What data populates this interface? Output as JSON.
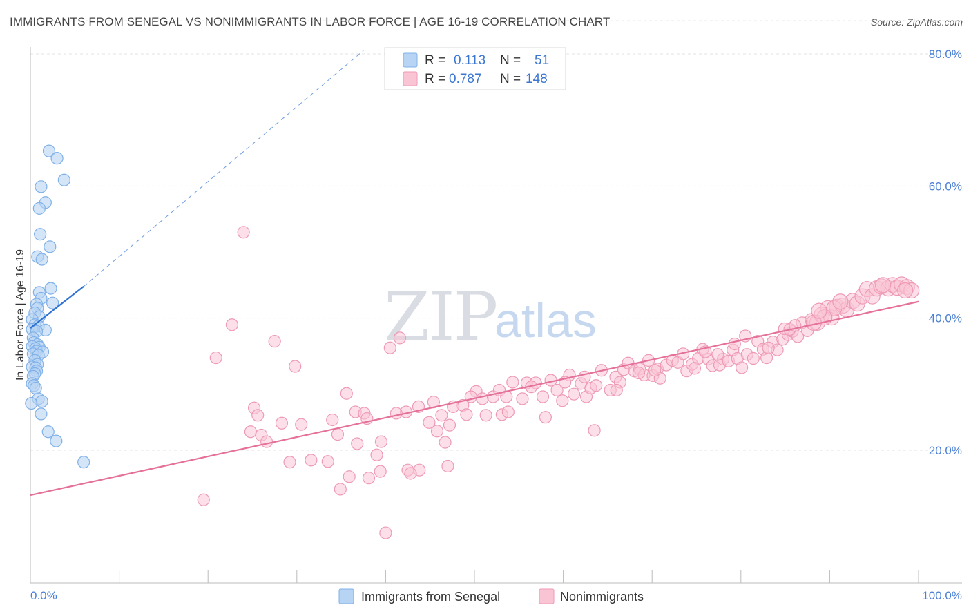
{
  "header": {
    "title": "IMMIGRANTS FROM SENEGAL VS NONIMMIGRANTS IN LABOR FORCE | AGE 16-19 CORRELATION CHART",
    "source": "Source: ZipAtlas.com"
  },
  "watermark": {
    "zip": "ZIP",
    "atlas": "atlas"
  },
  "colors": {
    "blue_fill": "#b8d4f4",
    "blue_stroke": "#7fb0e8",
    "blue_line": "#2f72d1",
    "pink_fill": "#f9c5d5",
    "pink_stroke": "#ee9ab5",
    "pink_line": "#e5719a",
    "tick_text": "#4a7fd6"
  },
  "chart_data": {
    "type": "scatter",
    "title": "IMMIGRANTS FROM SENEGAL VS NONIMMIGRANTS IN LABOR FORCE | AGE 16-19 CORRELATION CHART",
    "xlabel": "",
    "ylabel": "In Labor Force | Age 16-19",
    "xlim": [
      0,
      100
    ],
    "ylim": [
      0,
      85
    ],
    "x_tick_labels": [
      "0.0%",
      "100.0%"
    ],
    "y_ticks": [
      20,
      40,
      60,
      80
    ],
    "y_tick_labels": [
      "20.0%",
      "40.0%",
      "60.0%",
      "80.0%"
    ],
    "grid": true,
    "legend_position": "bottom-center",
    "stats": [
      {
        "r_label": "R =",
        "r_value": "0.113",
        "n_label": "N =",
        "n_value": "51"
      },
      {
        "r_label": "R =",
        "r_value": "0.787",
        "n_label": "N =",
        "n_value": "148"
      }
    ],
    "series": [
      {
        "name": "Immigrants from Senegal",
        "color": "#b8d4f4",
        "trend": {
          "x0": 0,
          "y0": 38.5,
          "x1": 6,
          "y1": 44.8
        },
        "trend_extension": {
          "x0": 6,
          "y0": 44.8,
          "x1": 37.5,
          "y1": 80.5
        },
        "points": [
          [
            2.1,
            65.3
          ],
          [
            3.0,
            64.2
          ],
          [
            1.2,
            59.9
          ],
          [
            3.8,
            60.9
          ],
          [
            1.7,
            57.5
          ],
          [
            1.0,
            56.6
          ],
          [
            1.1,
            52.7
          ],
          [
            2.2,
            50.8
          ],
          [
            0.8,
            49.3
          ],
          [
            1.3,
            48.9
          ],
          [
            2.3,
            44.5
          ],
          [
            1.0,
            43.9
          ],
          [
            1.2,
            43.0
          ],
          [
            2.5,
            42.3
          ],
          [
            0.7,
            42.1
          ],
          [
            0.8,
            41.5
          ],
          [
            0.5,
            40.8
          ],
          [
            1.0,
            40.2
          ],
          [
            0.2,
            39.8
          ],
          [
            0.5,
            39.0
          ],
          [
            0.9,
            38.8
          ],
          [
            0.2,
            38.3
          ],
          [
            1.7,
            38.2
          ],
          [
            0.7,
            38.0
          ],
          [
            0.3,
            37.0
          ],
          [
            0.4,
            36.3
          ],
          [
            0.8,
            36.0
          ],
          [
            0.2,
            35.7
          ],
          [
            1.0,
            35.6
          ],
          [
            0.6,
            35.4
          ],
          [
            0.7,
            35.0
          ],
          [
            1.4,
            34.9
          ],
          [
            0.3,
            34.6
          ],
          [
            0.9,
            34.4
          ],
          [
            0.5,
            33.6
          ],
          [
            0.8,
            33.0
          ],
          [
            0.2,
            32.6
          ],
          [
            0.6,
            32.5
          ],
          [
            0.7,
            32.0
          ],
          [
            0.5,
            31.6
          ],
          [
            0.3,
            31.2
          ],
          [
            0.2,
            30.1
          ],
          [
            0.4,
            29.8
          ],
          [
            0.9,
            27.8
          ],
          [
            1.3,
            27.4
          ],
          [
            0.1,
            27.1
          ],
          [
            1.2,
            25.5
          ],
          [
            2.0,
            22.8
          ],
          [
            2.9,
            21.4
          ],
          [
            6.0,
            18.2
          ],
          [
            0.6,
            29.4
          ]
        ]
      },
      {
        "name": "Nonimmigrants",
        "color": "#f9c5d5",
        "trend": {
          "x0": 0,
          "y0": 13.2,
          "x1": 100,
          "y1": 42.5
        },
        "points": [
          [
            24.0,
            53.0
          ],
          [
            22.7,
            39.0
          ],
          [
            27.5,
            36.5
          ],
          [
            20.9,
            34.0
          ],
          [
            29.8,
            32.7
          ],
          [
            41.6,
            37.0
          ],
          [
            40.5,
            35.5
          ],
          [
            35.6,
            28.6
          ],
          [
            25.2,
            26.4
          ],
          [
            25.6,
            25.3
          ],
          [
            24.8,
            22.8
          ],
          [
            26.0,
            22.3
          ],
          [
            26.6,
            21.3
          ],
          [
            28.3,
            24.1
          ],
          [
            30.5,
            23.9
          ],
          [
            34.6,
            22.4
          ],
          [
            34.0,
            24.6
          ],
          [
            36.6,
            25.8
          ],
          [
            36.8,
            21.0
          ],
          [
            37.6,
            25.6
          ],
          [
            37.9,
            24.8
          ],
          [
            39.5,
            21.3
          ],
          [
            39.0,
            19.3
          ],
          [
            29.2,
            18.2
          ],
          [
            31.6,
            18.5
          ],
          [
            33.5,
            18.3
          ],
          [
            35.9,
            16.0
          ],
          [
            38.1,
            15.8
          ],
          [
            39.4,
            16.8
          ],
          [
            42.5,
            17.0
          ],
          [
            43.8,
            17.0
          ],
          [
            42.8,
            16.5
          ],
          [
            47.0,
            17.6
          ],
          [
            19.5,
            12.5
          ],
          [
            34.9,
            14.1
          ],
          [
            40.0,
            7.5
          ],
          [
            42.3,
            25.8
          ],
          [
            43.7,
            26.6
          ],
          [
            45.4,
            27.3
          ],
          [
            44.9,
            24.2
          ],
          [
            45.8,
            22.9
          ],
          [
            46.7,
            21.2
          ],
          [
            47.2,
            23.8
          ],
          [
            48.7,
            26.8
          ],
          [
            49.1,
            25.4
          ],
          [
            50.2,
            28.9
          ],
          [
            50.9,
            27.8
          ],
          [
            51.3,
            25.3
          ],
          [
            52.1,
            28.1
          ],
          [
            52.8,
            29.1
          ],
          [
            53.6,
            28.1
          ],
          [
            53.1,
            25.4
          ],
          [
            53.8,
            25.8
          ],
          [
            54.3,
            30.3
          ],
          [
            55.4,
            27.8
          ],
          [
            55.9,
            30.2
          ],
          [
            56.9,
            30.2
          ],
          [
            57.7,
            28.1
          ],
          [
            58.0,
            25.0
          ],
          [
            58.6,
            30.6
          ],
          [
            59.3,
            29.1
          ],
          [
            59.9,
            27.5
          ],
          [
            60.7,
            31.4
          ],
          [
            61.2,
            28.5
          ],
          [
            62.0,
            30.1
          ],
          [
            62.6,
            28.1
          ],
          [
            63.1,
            29.4
          ],
          [
            63.7,
            29.8
          ],
          [
            64.3,
            32.1
          ],
          [
            63.5,
            23.0
          ],
          [
            65.3,
            29.1
          ],
          [
            65.9,
            31.1
          ],
          [
            66.4,
            30.3
          ],
          [
            66.8,
            32.2
          ],
          [
            67.3,
            33.2
          ],
          [
            68.0,
            32.0
          ],
          [
            68.6,
            32.3
          ],
          [
            69.1,
            31.4
          ],
          [
            69.6,
            33.6
          ],
          [
            70.1,
            31.3
          ],
          [
            70.6,
            32.3
          ],
          [
            70.9,
            30.9
          ],
          [
            71.6,
            32.9
          ],
          [
            72.3,
            33.6
          ],
          [
            72.9,
            33.3
          ],
          [
            73.5,
            34.6
          ],
          [
            73.9,
            32.0
          ],
          [
            74.5,
            33.0
          ],
          [
            75.2,
            33.9
          ],
          [
            75.7,
            35.3
          ],
          [
            76.3,
            33.8
          ],
          [
            76.8,
            32.8
          ],
          [
            77.6,
            32.9
          ],
          [
            78.0,
            33.8
          ],
          [
            78.6,
            33.5
          ],
          [
            79.1,
            35.2
          ],
          [
            79.6,
            33.9
          ],
          [
            80.1,
            32.5
          ],
          [
            80.7,
            34.5
          ],
          [
            81.4,
            33.9
          ],
          [
            81.9,
            36.5
          ],
          [
            82.5,
            35.3
          ],
          [
            82.9,
            34.0
          ],
          [
            83.6,
            36.4
          ],
          [
            84.1,
            35.2
          ],
          [
            84.7,
            36.8
          ],
          [
            85.3,
            37.5
          ],
          [
            85.8,
            38.0
          ],
          [
            86.4,
            37.2
          ],
          [
            86.9,
            39.3
          ],
          [
            87.5,
            38.1
          ],
          [
            87.9,
            39.8
          ],
          [
            88.6,
            39.3
          ],
          [
            89.1,
            40.5
          ],
          [
            89.8,
            41.5
          ],
          [
            90.2,
            40.1
          ],
          [
            90.8,
            41.7
          ],
          [
            91.5,
            41.9
          ],
          [
            91.9,
            41.3
          ],
          [
            92.6,
            42.6
          ],
          [
            93.1,
            42.2
          ],
          [
            93.7,
            43.3
          ],
          [
            94.2,
            44.4
          ],
          [
            94.8,
            43.3
          ],
          [
            95.3,
            44.5
          ],
          [
            95.8,
            44.8
          ],
          [
            96.6,
            44.5
          ],
          [
            97.1,
            45.0
          ],
          [
            97.6,
            44.6
          ],
          [
            98.1,
            45.1
          ],
          [
            98.7,
            44.7
          ],
          [
            99.2,
            44.2
          ],
          [
            90.5,
            41.5
          ],
          [
            89.4,
            40.1
          ],
          [
            88.2,
            39.3
          ],
          [
            84.9,
            38.4
          ],
          [
            83.1,
            35.5
          ],
          [
            80.5,
            37.3
          ],
          [
            79.3,
            36.1
          ],
          [
            77.4,
            34.5
          ],
          [
            76.0,
            34.9
          ],
          [
            74.8,
            32.4
          ],
          [
            70.3,
            32.1
          ],
          [
            68.5,
            31.7
          ],
          [
            66.0,
            29.1
          ],
          [
            62.4,
            31.1
          ],
          [
            60.2,
            30.3
          ],
          [
            56.4,
            29.6
          ],
          [
            49.6,
            28.1
          ],
          [
            47.6,
            26.6
          ],
          [
            46.3,
            25.3
          ],
          [
            41.2,
            25.6
          ],
          [
            85.5,
            38.3
          ],
          [
            88.8,
            41.1
          ],
          [
            91.2,
            42.5
          ],
          [
            96.0,
            45.0
          ],
          [
            98.5,
            44.2
          ],
          [
            86.1,
            38.9
          ]
        ]
      }
    ]
  },
  "legend": {
    "items": [
      "Immigrants from Senegal",
      "Nonimmigrants"
    ]
  }
}
